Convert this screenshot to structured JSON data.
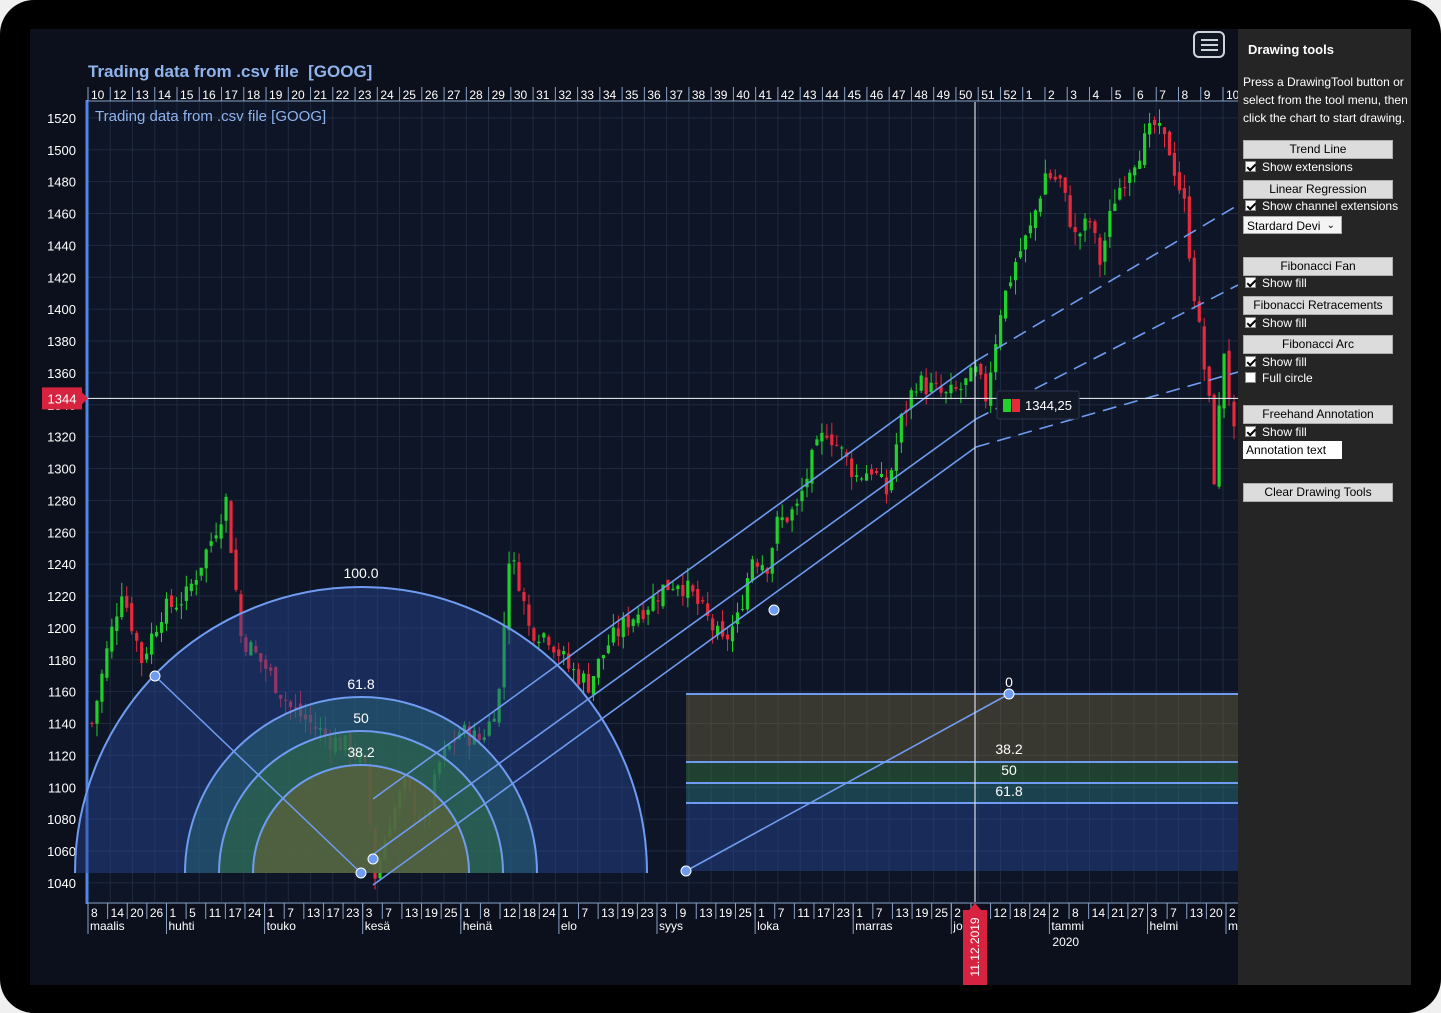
{
  "chart_data": {
    "type": "candlestick",
    "title": "Trading data from .csv file  [GOOG]",
    "inner_title": "Trading data from .csv file [GOOG]",
    "ylim": [
      1028,
      1530
    ],
    "y_ticks": [
      1040,
      1060,
      1080,
      1100,
      1120,
      1140,
      1160,
      1180,
      1200,
      1220,
      1240,
      1260,
      1280,
      1300,
      1320,
      1340,
      1360,
      1380,
      1400,
      1420,
      1440,
      1460,
      1480,
      1500,
      1520
    ],
    "top_axis_labels": [
      "10",
      "12",
      "13",
      "14",
      "15",
      "16",
      "17",
      "18",
      "19",
      "20",
      "21",
      "22",
      "23",
      "24",
      "25",
      "26",
      "27",
      "28",
      "29",
      "30",
      "31",
      "32",
      "33",
      "34",
      "35",
      "36",
      "37",
      "38",
      "39",
      "40",
      "41",
      "42",
      "43",
      "44",
      "45",
      "46",
      "47",
      "48",
      "49",
      "50",
      "51",
      "52",
      "1",
      "2",
      "3",
      "4",
      "5",
      "6",
      "7",
      "8",
      "9",
      "10"
    ],
    "bottom_axis_days": [
      "8",
      "14",
      "20",
      "26",
      "1",
      "5",
      "11",
      "17",
      "24",
      "1",
      "7",
      "13",
      "17",
      "23",
      "3",
      "7",
      "13",
      "19",
      "25",
      "1",
      "8",
      "12",
      "18",
      "24",
      "1",
      "7",
      "13",
      "19",
      "23",
      "3",
      "9",
      "13",
      "19",
      "25",
      "1",
      "7",
      "11",
      "17",
      "23",
      "1",
      "7",
      "13",
      "19",
      "25",
      "2",
      "6",
      "12",
      "18",
      "24",
      "2",
      "8",
      "14",
      "21",
      "27",
      "3",
      "7",
      "13",
      "20",
      "2"
    ],
    "bottom_axis_months": [
      "maalis",
      "huhti",
      "touko",
      "kesä",
      "heinä",
      "elo",
      "syys",
      "loka",
      "marras",
      "joulu",
      "tammi",
      "helmi",
      "maalis"
    ],
    "bottom_axis_year": "2020",
    "crosshair": {
      "price_label": "1344",
      "price": 1344,
      "date_label": "11.12.2019",
      "tooltip": "1344,25"
    },
    "colors": {
      "up": "#1fd12a",
      "down": "#e8293c",
      "accent": "#6f9cf0",
      "background": "#0b101c",
      "crosshair_label": "#d62440"
    },
    "fibonacci_arc": {
      "levels": [
        "100.0",
        "61.8",
        "50",
        "38.2"
      ]
    },
    "fibonacci_retracement": {
      "levels": [
        "0",
        "38.2",
        "50",
        "61.8"
      ],
      "prices": [
        1158,
        1116,
        1103,
        1090
      ]
    },
    "candles": []
  },
  "panel": {
    "title": "Drawing tools",
    "instructions": "Press a DrawingTool button or select from the tool menu, then click the chart to start drawing.",
    "trend_line": "Trend Line",
    "show_extensions": "Show extensions",
    "linear_regression": "Linear Regression",
    "show_channel_extensions": "Show channel extensions",
    "deviation_select": "Stardard Devi",
    "fibonacci_fan": "Fibonacci Fan",
    "fib_fan_show_fill": "Show fill",
    "fibonacci_retracements": "Fibonacci Retracements",
    "fib_ret_show_fill": "Show fill",
    "fibonacci_arc": "Fibonacci Arc",
    "fib_arc_show_fill": "Show fill",
    "full_circle": "Full circle",
    "freehand_annotation": "Freehand Annotation",
    "freehand_show_fill": "Show fill",
    "annotation_text": "Annotation text",
    "clear_drawing_tools": "Clear Drawing Tools"
  }
}
